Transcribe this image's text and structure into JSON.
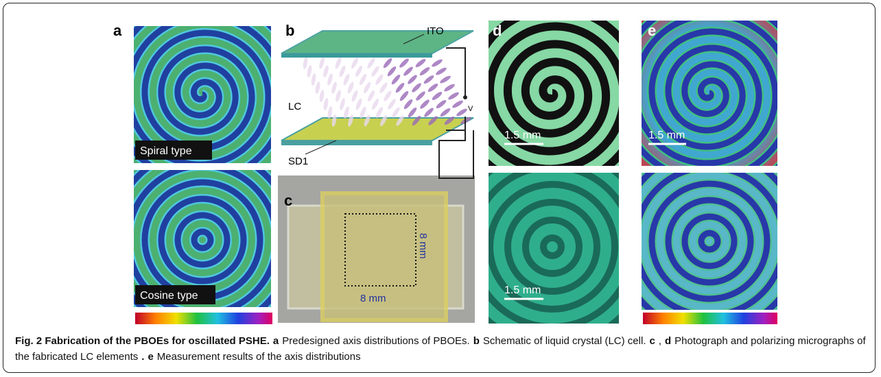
{
  "panels": {
    "a": {
      "label": "a",
      "top_tag": "Spiral type",
      "bottom_tag": "Cosine type"
    },
    "b": {
      "label": "b",
      "ito": "ITO",
      "lc": "LC",
      "sd1": "SD1",
      "voltage": "V"
    },
    "c": {
      "label": "c",
      "width": "8 mm",
      "height": "8 mm"
    },
    "d": {
      "label": "d",
      "top_scale": "1.5 mm",
      "bottom_scale": "1.5 mm"
    },
    "e": {
      "label": "e",
      "top_scale": "1.5 mm"
    }
  },
  "caption": [
    {
      "text": "Fig. 2 Fabrication of the PBOEs for oscillated PSHE.",
      "bold": true
    },
    {
      "text": "a",
      "bold": true
    },
    {
      "text": "Predesigned axis distributions of PBOEs.",
      "bold": false
    },
    {
      "text": "b",
      "bold": true
    },
    {
      "text": "Schematic of liquid crystal (LC) cell.",
      "bold": false
    },
    {
      "text": "c",
      "bold": true
    },
    {
      "text": ",",
      "bold": false
    },
    {
      "text": "d",
      "bold": true
    },
    {
      "text": "Photograph and polarizing micrographs of the fabricated LC elements",
      "bold": false
    },
    {
      "text": ".",
      "bold": true
    },
    {
      "text": "e",
      "bold": true
    },
    {
      "text": "Measurement results of the axis distributions",
      "bold": false
    }
  ]
}
